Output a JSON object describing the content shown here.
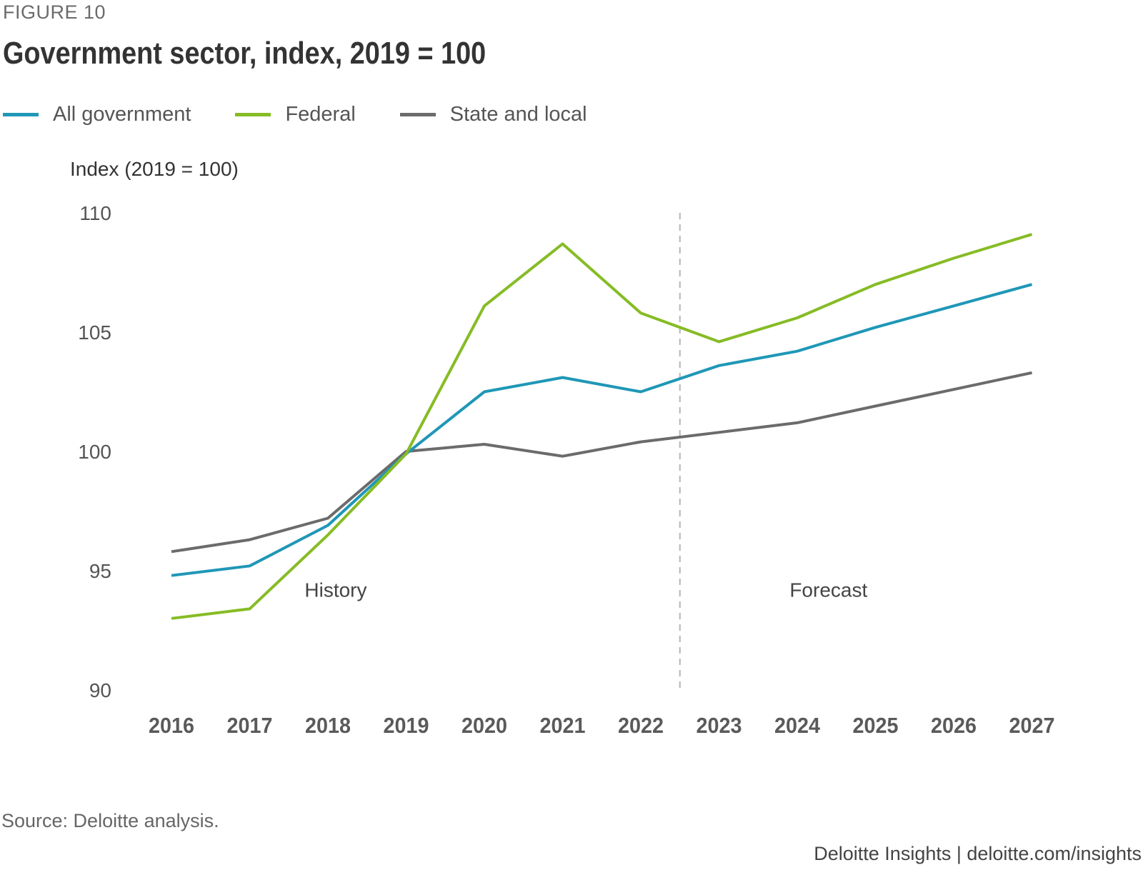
{
  "figure_label": "FIGURE 10",
  "footer": {
    "source": "Source: Deloitte analysis.",
    "brand": "Deloitte Insights | deloitte.com/insights"
  },
  "chart_data": {
    "type": "line",
    "title": "Government sector, index, 2019 = 100",
    "ylabel": "Index (2019 = 100)",
    "xlabel": "",
    "ylim": [
      90,
      110
    ],
    "yticks": [
      90,
      95,
      100,
      105,
      110
    ],
    "x": [
      "2016",
      "2017",
      "2018",
      "2019",
      "2020",
      "2021",
      "2022",
      "2023",
      "2024",
      "2025",
      "2026",
      "2027"
    ],
    "series": [
      {
        "name": "All government",
        "color": "#1f97b7",
        "values": [
          94.8,
          95.2,
          96.9,
          99.9,
          102.5,
          103.1,
          102.5,
          103.6,
          104.2,
          105.2,
          106.1,
          107.0
        ]
      },
      {
        "name": "Federal",
        "color": "#86bc25",
        "values": [
          93.0,
          93.4,
          96.5,
          99.9,
          106.1,
          108.7,
          105.8,
          104.6,
          105.6,
          107.0,
          108.1,
          109.1
        ]
      },
      {
        "name": "State and local",
        "color": "#6b6b6b",
        "values": [
          95.8,
          96.3,
          97.2,
          100.0,
          100.3,
          99.8,
          100.4,
          100.8,
          101.2,
          101.9,
          102.6,
          103.3
        ]
      }
    ],
    "divider_after": "2022",
    "annotations": {
      "history": "History",
      "forecast": "Forecast"
    },
    "grid": false,
    "legend_position": "top-left"
  }
}
